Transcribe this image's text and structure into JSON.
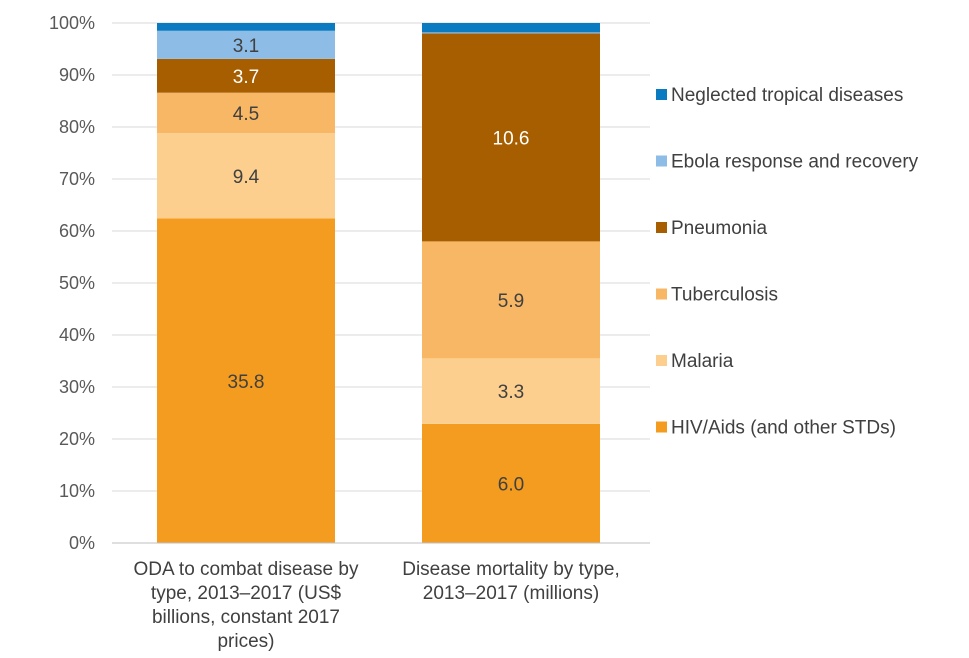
{
  "chart_data": {
    "type": "bar",
    "stacked": "percent",
    "categories": [
      [
        "ODA to combat disease by",
        "type, 2013–2017 (US$",
        "billions, constant 2017",
        "prices)"
      ],
      [
        "Disease mortality by type,",
        "2013–2017 (millions)"
      ]
    ],
    "series": [
      {
        "name": "HIV/Aids (and other STDs)",
        "color": "#F39C1F",
        "shares": [
          62.4,
          22.9
        ],
        "labels": [
          "35.8",
          "6.0"
        ],
        "label_color": "#404040"
      },
      {
        "name": "Malaria",
        "color": "#FDCF8F",
        "shares": [
          16.4,
          12.6
        ],
        "labels": [
          "9.4",
          "3.3"
        ],
        "label_color": "#404040"
      },
      {
        "name": "Tuberculosis",
        "color": "#F8B765",
        "shares": [
          7.8,
          22.5
        ],
        "labels": [
          "4.5",
          "5.9"
        ],
        "label_color": "#404040"
      },
      {
        "name": "Pneumonia",
        "color": "#A65E00",
        "shares": [
          6.5,
          40.0
        ],
        "labels": [
          "3.7",
          "10.6"
        ],
        "label_color": "#ffffff"
      },
      {
        "name": "Ebola response and recovery",
        "color": "#8DBDE6",
        "shares": [
          5.4,
          0.2
        ],
        "labels": [
          "3.1",
          ""
        ],
        "label_color": "#404040"
      },
      {
        "name": "Neglected tropical diseases",
        "color": "#0A7BC1",
        "shares": [
          1.5,
          1.8
        ],
        "labels": [
          "",
          ""
        ],
        "label_color": "#404040"
      }
    ],
    "ylim": [
      0,
      100
    ],
    "yticks": [
      "0%",
      "10%",
      "20%",
      "30%",
      "40%",
      "50%",
      "60%",
      "70%",
      "80%",
      "90%",
      "100%"
    ],
    "grid": true,
    "legend": "right",
    "title": "",
    "xlabel": "",
    "ylabel": ""
  }
}
